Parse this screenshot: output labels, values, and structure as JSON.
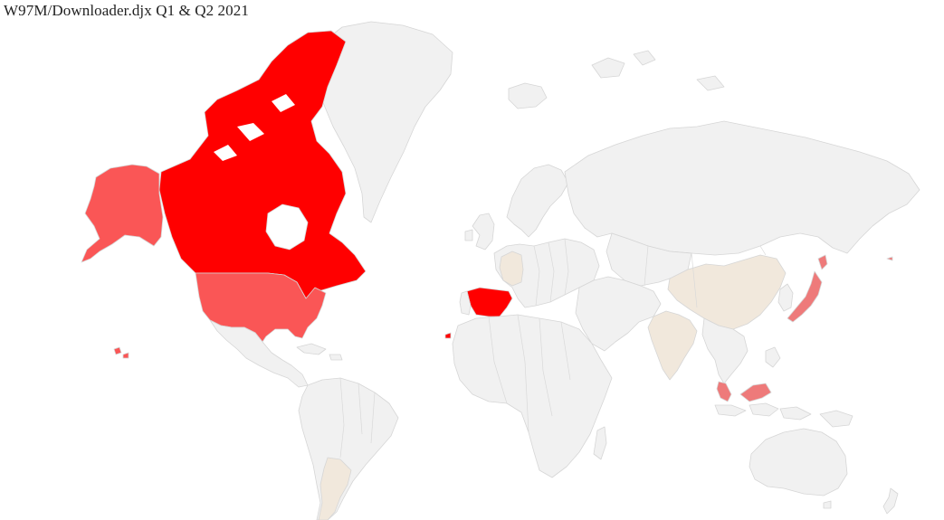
{
  "title": "W97M/Downloader.djx Q1 & Q2 2021",
  "colors": {
    "no_data": "#f1f1f1",
    "low": "#f1e8dc",
    "medium": "#ee7a7a",
    "high": "#fa5656",
    "max": "#ff0000",
    "border": "#d6d6d6",
    "background": "#ffffff"
  },
  "regions": [
    {
      "name": "Canada",
      "level": "max"
    },
    {
      "name": "Spain",
      "level": "max"
    },
    {
      "name": "Alaska",
      "level": "high"
    },
    {
      "name": "United States",
      "level": "high"
    },
    {
      "name": "Japan",
      "level": "medium"
    },
    {
      "name": "Malaysia",
      "level": "medium"
    },
    {
      "name": "Germany",
      "level": "low"
    },
    {
      "name": "China",
      "level": "low"
    },
    {
      "name": "India",
      "level": "low"
    },
    {
      "name": "Argentina",
      "level": "low"
    }
  ]
}
